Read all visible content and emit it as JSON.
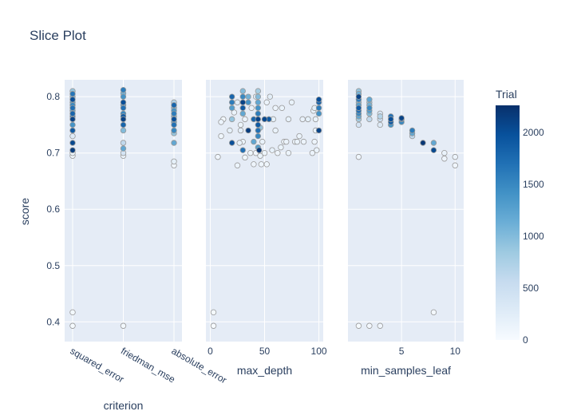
{
  "chart_data": {
    "type": "scatter",
    "title": "Slice Plot",
    "ylabel": "score",
    "ylim": [
      0.365,
      0.83
    ],
    "yticks": [
      0.4,
      0.5,
      0.6,
      0.7,
      0.8
    ],
    "colorbar": {
      "title": "Trial",
      "range": [
        0,
        2260
      ],
      "ticks": [
        0,
        500,
        1000,
        1500,
        2000
      ],
      "colorscale": [
        "#f7fbff",
        "#deebf7",
        "#c6dbef",
        "#9ecae1",
        "#6baed6",
        "#4292c6",
        "#2171b5",
        "#08519c",
        "#08306b"
      ]
    },
    "panels": [
      {
        "name": "criterion",
        "xlabel": "criterion",
        "x_type": "category",
        "categories": [
          "squared_error",
          "friedman_mse",
          "absolute_error"
        ],
        "points": [
          [
            "squared_error",
            0.393,
            20
          ],
          [
            "squared_error",
            0.417,
            40
          ],
          [
            "squared_error",
            0.695,
            90
          ],
          [
            "squared_error",
            0.7,
            150
          ],
          [
            "squared_error",
            0.705,
            2150
          ],
          [
            "squared_error",
            0.718,
            2050
          ],
          [
            "squared_error",
            0.73,
            300
          ],
          [
            "squared_error",
            0.74,
            1900
          ],
          [
            "squared_error",
            0.75,
            1400
          ],
          [
            "squared_error",
            0.76,
            2100
          ],
          [
            "squared_error",
            0.765,
            1600
          ],
          [
            "squared_error",
            0.77,
            1800
          ],
          [
            "squared_error",
            0.775,
            1200
          ],
          [
            "squared_error",
            0.78,
            1700
          ],
          [
            "squared_error",
            0.785,
            1500
          ],
          [
            "squared_error",
            0.79,
            1300
          ],
          [
            "squared_error",
            0.795,
            2000
          ],
          [
            "squared_error",
            0.8,
            1100
          ],
          [
            "squared_error",
            0.805,
            1650
          ],
          [
            "squared_error",
            0.81,
            900
          ],
          [
            "friedman_mse",
            0.393,
            60
          ],
          [
            "friedman_mse",
            0.695,
            120
          ],
          [
            "friedman_mse",
            0.7,
            400
          ],
          [
            "friedman_mse",
            0.708,
            1200
          ],
          [
            "friedman_mse",
            0.718,
            600
          ],
          [
            "friedman_mse",
            0.74,
            1000
          ],
          [
            "friedman_mse",
            0.75,
            1800
          ],
          [
            "friedman_mse",
            0.76,
            2100
          ],
          [
            "friedman_mse",
            0.765,
            1900
          ],
          [
            "friedman_mse",
            0.77,
            1500
          ],
          [
            "friedman_mse",
            0.78,
            1700
          ],
          [
            "friedman_mse",
            0.785,
            1300
          ],
          [
            "friedman_mse",
            0.79,
            2000
          ],
          [
            "friedman_mse",
            0.8,
            1400
          ],
          [
            "friedman_mse",
            0.806,
            1100
          ],
          [
            "friedman_mse",
            0.812,
            1600
          ],
          [
            "absolute_error",
            0.678,
            80
          ],
          [
            "absolute_error",
            0.685,
            200
          ],
          [
            "absolute_error",
            0.718,
            1200
          ],
          [
            "absolute_error",
            0.735,
            900
          ],
          [
            "absolute_error",
            0.74,
            1500
          ],
          [
            "absolute_error",
            0.75,
            1700
          ],
          [
            "absolute_error",
            0.755,
            1300
          ],
          [
            "absolute_error",
            0.76,
            2000
          ],
          [
            "absolute_error",
            0.765,
            1100
          ],
          [
            "absolute_error",
            0.77,
            1600
          ],
          [
            "absolute_error",
            0.775,
            1400
          ],
          [
            "absolute_error",
            0.78,
            1000
          ],
          [
            "absolute_error",
            0.785,
            1800
          ],
          [
            "absolute_error",
            0.79,
            700
          ]
        ]
      },
      {
        "name": "max_depth",
        "xlabel": "max_depth",
        "x_type": "linear",
        "xlim": [
          -4,
          104
        ],
        "xticks": [
          0,
          50,
          100
        ],
        "points": [
          [
            3,
            0.393,
            10
          ],
          [
            3,
            0.417,
            30
          ],
          [
            7,
            0.693,
            80
          ],
          [
            10,
            0.73,
            90
          ],
          [
            10,
            0.755,
            120
          ],
          [
            12,
            0.76,
            60
          ],
          [
            18,
            0.74,
            200
          ],
          [
            20,
            0.718,
            2000
          ],
          [
            20,
            0.76,
            900
          ],
          [
            20,
            0.78,
            1300
          ],
          [
            20,
            0.79,
            1600
          ],
          [
            20,
            0.8,
            1800
          ],
          [
            22,
            0.772,
            150
          ],
          [
            25,
            0.678,
            120
          ],
          [
            25,
            0.79,
            250
          ],
          [
            27,
            0.718,
            180
          ],
          [
            28,
            0.74,
            220
          ],
          [
            28,
            0.75,
            130
          ],
          [
            30,
            0.705,
            1700
          ],
          [
            30,
            0.72,
            150
          ],
          [
            30,
            0.77,
            1200
          ],
          [
            30,
            0.78,
            1900
          ],
          [
            30,
            0.79,
            2100
          ],
          [
            30,
            0.8,
            1500
          ],
          [
            30,
            0.81,
            1000
          ],
          [
            32,
            0.692,
            90
          ],
          [
            32,
            0.76,
            140
          ],
          [
            35,
            0.79,
            1400
          ],
          [
            35,
            0.8,
            1100
          ],
          [
            35,
            0.74,
            2150
          ],
          [
            37,
            0.7,
            110
          ],
          [
            38,
            0.78,
            170
          ],
          [
            40,
            0.72,
            1200
          ],
          [
            40,
            0.76,
            1800
          ],
          [
            40,
            0.68,
            100
          ],
          [
            42,
            0.7,
            80
          ],
          [
            42,
            0.8,
            260
          ],
          [
            44,
            0.71,
            1300
          ],
          [
            44,
            0.73,
            1500
          ],
          [
            44,
            0.74,
            1700
          ],
          [
            44,
            0.75,
            1900
          ],
          [
            44,
            0.76,
            2100
          ],
          [
            44,
            0.77,
            1600
          ],
          [
            44,
            0.78,
            1400
          ],
          [
            44,
            0.79,
            1200
          ],
          [
            44,
            0.8,
            1000
          ],
          [
            44,
            0.81,
            800
          ],
          [
            45,
            0.705,
            2200
          ],
          [
            46,
            0.695,
            130
          ],
          [
            46,
            0.745,
            900
          ],
          [
            47,
            0.68,
            100
          ],
          [
            48,
            0.72,
            160
          ],
          [
            50,
            0.76,
            2050
          ],
          [
            50,
            0.7,
            110
          ],
          [
            52,
            0.68,
            90
          ],
          [
            52,
            0.79,
            140
          ],
          [
            54,
            0.76,
            1900
          ],
          [
            55,
            0.8,
            230
          ],
          [
            57,
            0.705,
            180
          ],
          [
            58,
            0.76,
            200
          ],
          [
            60,
            0.78,
            120
          ],
          [
            60,
            0.74,
            160
          ],
          [
            62,
            0.7,
            100
          ],
          [
            65,
            0.71,
            130
          ],
          [
            66,
            0.78,
            150
          ],
          [
            68,
            0.72,
            90
          ],
          [
            70,
            0.72,
            140
          ],
          [
            72,
            0.76,
            180
          ],
          [
            72,
            0.7,
            120
          ],
          [
            75,
            0.79,
            160
          ],
          [
            78,
            0.72,
            110
          ],
          [
            80,
            0.72,
            150
          ],
          [
            82,
            0.73,
            130
          ],
          [
            85,
            0.76,
            170
          ],
          [
            86,
            0.72,
            120
          ],
          [
            90,
            0.76,
            200
          ],
          [
            94,
            0.7,
            140
          ],
          [
            95,
            0.775,
            180
          ],
          [
            96,
            0.78,
            200
          ],
          [
            96,
            0.72,
            100
          ],
          [
            97,
            0.76,
            160
          ],
          [
            97,
            0.74,
            120
          ],
          [
            98,
            0.705,
            150
          ],
          [
            100,
            0.74,
            2100
          ],
          [
            100,
            0.77,
            1400
          ],
          [
            100,
            0.78,
            1600
          ],
          [
            100,
            0.79,
            1800
          ],
          [
            100,
            0.795,
            2000
          ]
        ]
      },
      {
        "name": "min_samples_leaf",
        "xlabel": "min_samples_leaf",
        "x_type": "linear",
        "xlim": [
          0,
          10.8
        ],
        "xticks": [
          5,
          10
        ],
        "points": [
          [
            1,
            0.393,
            20
          ],
          [
            1,
            0.693,
            100
          ],
          [
            1,
            0.75,
            400
          ],
          [
            1,
            0.76,
            800
          ],
          [
            1,
            0.765,
            1200
          ],
          [
            1,
            0.77,
            1500
          ],
          [
            1,
            0.775,
            1700
          ],
          [
            1,
            0.78,
            1900
          ],
          [
            1,
            0.785,
            1300
          ],
          [
            1,
            0.79,
            1000
          ],
          [
            1,
            0.795,
            1600
          ],
          [
            1,
            0.8,
            2100
          ],
          [
            1,
            0.805,
            1100
          ],
          [
            1,
            0.81,
            900
          ],
          [
            2,
            0.393,
            50
          ],
          [
            2,
            0.76,
            600
          ],
          [
            2,
            0.77,
            1000
          ],
          [
            2,
            0.775,
            1300
          ],
          [
            2,
            0.78,
            1500
          ],
          [
            2,
            0.785,
            1100
          ],
          [
            2,
            0.79,
            900
          ],
          [
            2,
            0.795,
            1200
          ],
          [
            3,
            0.393,
            80
          ],
          [
            3,
            0.75,
            300
          ],
          [
            3,
            0.76,
            500
          ],
          [
            3,
            0.765,
            700
          ],
          [
            3,
            0.77,
            400
          ],
          [
            4,
            0.75,
            1400
          ],
          [
            4,
            0.755,
            1900
          ],
          [
            4,
            0.76,
            2000
          ],
          [
            4,
            0.765,
            1700
          ],
          [
            5,
            0.755,
            1500
          ],
          [
            5,
            0.76,
            1800
          ],
          [
            5,
            0.762,
            2100
          ],
          [
            6,
            0.73,
            600
          ],
          [
            6,
            0.735,
            1200
          ],
          [
            6,
            0.74,
            1600
          ],
          [
            7,
            0.718,
            2200
          ],
          [
            8,
            0.417,
            50
          ],
          [
            8,
            0.705,
            2050
          ],
          [
            8,
            0.718,
            1200
          ],
          [
            9,
            0.69,
            100
          ],
          [
            9,
            0.7,
            150
          ],
          [
            10,
            0.678,
            80
          ],
          [
            10,
            0.693,
            120
          ]
        ]
      }
    ]
  }
}
